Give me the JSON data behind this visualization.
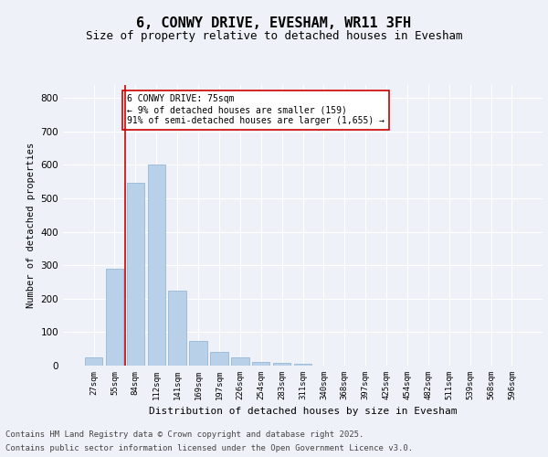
{
  "title": "6, CONWY DRIVE, EVESHAM, WR11 3FH",
  "subtitle": "Size of property relative to detached houses in Evesham",
  "xlabel": "Distribution of detached houses by size in Evesham",
  "ylabel": "Number of detached properties",
  "categories": [
    "27sqm",
    "55sqm",
    "84sqm",
    "112sqm",
    "141sqm",
    "169sqm",
    "197sqm",
    "226sqm",
    "254sqm",
    "283sqm",
    "311sqm",
    "340sqm",
    "368sqm",
    "397sqm",
    "425sqm",
    "454sqm",
    "482sqm",
    "511sqm",
    "539sqm",
    "568sqm",
    "596sqm"
  ],
  "values": [
    25,
    290,
    545,
    600,
    225,
    75,
    40,
    25,
    12,
    8,
    5,
    0,
    0,
    0,
    0,
    0,
    0,
    0,
    0,
    0,
    0
  ],
  "bar_color": "#b8d0e8",
  "bar_edge_color": "#8ab0d0",
  "vline_x": 1.5,
  "vline_color": "#cc0000",
  "annotation_text": "6 CONWY DRIVE: 75sqm\n← 9% of detached houses are smaller (159)\n91% of semi-detached houses are larger (1,655) →",
  "annotation_box_color": "#ffffff",
  "annotation_box_edge": "#cc0000",
  "ylim": [
    0,
    840
  ],
  "yticks": [
    0,
    100,
    200,
    300,
    400,
    500,
    600,
    700,
    800
  ],
  "bg_color": "#eef2f8",
  "plot_bg_color": "#eef2f8",
  "grid_color": "#ffffff",
  "footer_line1": "Contains HM Land Registry data © Crown copyright and database right 2025.",
  "footer_line2": "Contains public sector information licensed under the Open Government Licence v3.0.",
  "title_fontsize": 11,
  "subtitle_fontsize": 9,
  "ylabel_fontsize": 7.5,
  "xlabel_fontsize": 8,
  "tick_fontsize": 6.5,
  "ytick_fontsize": 7.5,
  "ann_fontsize": 7,
  "footer_fontsize": 6.5
}
